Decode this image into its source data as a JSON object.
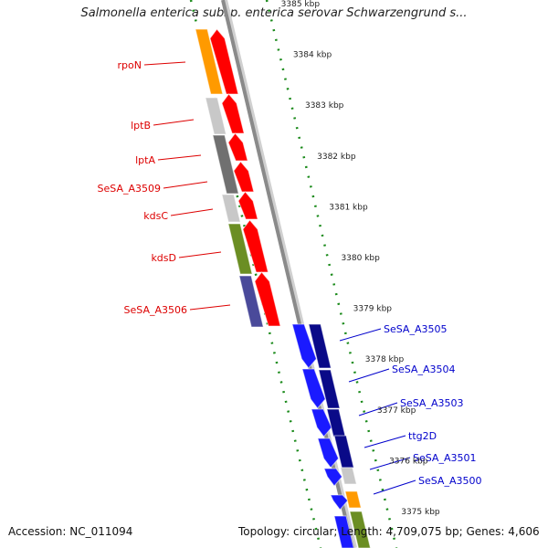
{
  "title": "Salmonella enterica subsp. enterica serovar Schwarzengrund s...",
  "footer": {
    "accession": "Accession: NC_011094",
    "topology": "Topology: circular; Length: 4,709,075 bp; Genes: 4,606"
  },
  "ticks": [
    "3385 kbp",
    "3384 kbp",
    "3383 kbp",
    "3382 kbp",
    "3381 kbp",
    "3380 kbp",
    "3379 kbp",
    "3378 kbp",
    "3377 kbp",
    "3376 kbp",
    "3375 kbp"
  ],
  "genes_reverse": [
    "rpoN",
    "lptB",
    "lptA",
    "SeSA_A3509",
    "kdsC",
    "kdsD",
    "SeSA_A3506"
  ],
  "genes_forward": [
    "SeSA_A3505",
    "SeSA_A3504",
    "SeSA_A3503",
    "ttg2D",
    "SeSA_A3501",
    "SeSA_A3500"
  ],
  "colors": {
    "backbone": "#8a8a8a",
    "reverse_strand": "#ff0000",
    "forward_strand": "#1a1aff",
    "forward_dark": "#0a0a88",
    "reverse_label": "#dd0000",
    "forward_label": "#0000cc",
    "dots": "#1a8a1a",
    "orange": "#ff9a00",
    "light_gray": "#c8c8c8",
    "dark_gray": "#707070",
    "olive": "#6b8e23",
    "slate": "#4a4a9a"
  }
}
